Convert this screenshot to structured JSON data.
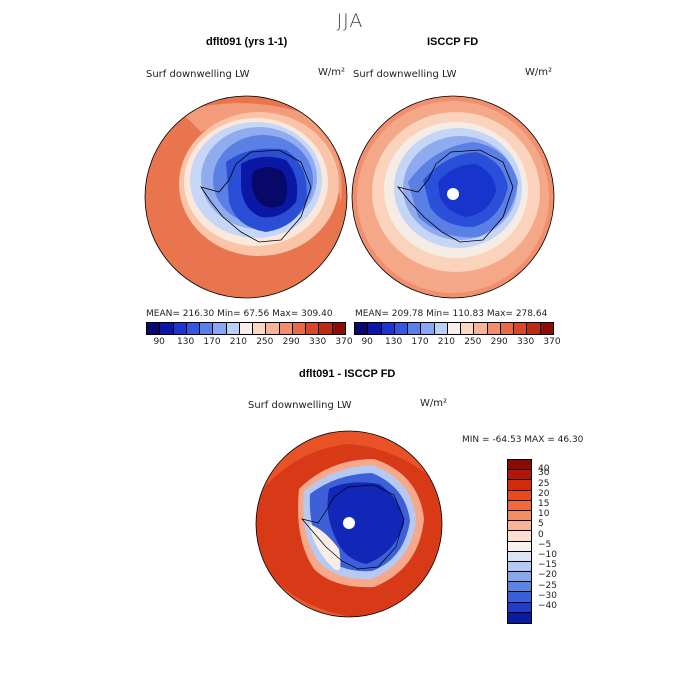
{
  "title": "JJA",
  "panels": [
    {
      "title": "dflt091 (yrs 1-1)",
      "label": "Surf downwelling LW",
      "units": "W/m²",
      "stats": {
        "mean": "MEAN= 216.30",
        "min": "Min=  67.56",
        "max": "Max= 309.40"
      },
      "stats_line": "MEAN= 216.30   Min=  67.56   Max= 309.40"
    },
    {
      "title": "ISCCP FD",
      "label": "Surf downwelling LW",
      "units": "W/m²",
      "stats_line": "MEAN= 209.78   Min= 110.83   Max= 278.64"
    },
    {
      "title": "dflt091 - ISCCP FD",
      "label": "Surf downwelling LW",
      "units": "W/m²",
      "stats_line": "MIN = -64.53 MAX =  46.30"
    }
  ],
  "colorbar_top": {
    "ticks": [
      "90",
      "130",
      "170",
      "210",
      "250",
      "290",
      "330",
      "370"
    ],
    "colors": [
      "#08086b",
      "#0b16a8",
      "#1a35d0",
      "#3357e0",
      "#5a7fe8",
      "#8aa8f0",
      "#bcd0f7",
      "#f7efe8",
      "#fbd6c2",
      "#f7b49a",
      "#f08f70",
      "#e86a48",
      "#d9472a",
      "#bf2a14",
      "#8f0d07"
    ]
  },
  "colorbar_diff": {
    "ticks": [
      "40",
      "30",
      "25",
      "20",
      "15",
      "10",
      "5",
      "0",
      "−5",
      "−10",
      "−15",
      "−20",
      "−25",
      "−30",
      "−40"
    ],
    "colors": [
      "#8b0a05",
      "#b31507",
      "#d42a0c",
      "#e84a20",
      "#f06a40",
      "#f48c65",
      "#f8b395",
      "#fce0cf",
      "#f5f2f0",
      "#d9e4f7",
      "#b2c8f1",
      "#88a8eb",
      "#5c82e3",
      "#3a5ed8",
      "#1f3cc6",
      "#0b1b9e"
    ]
  }
}
